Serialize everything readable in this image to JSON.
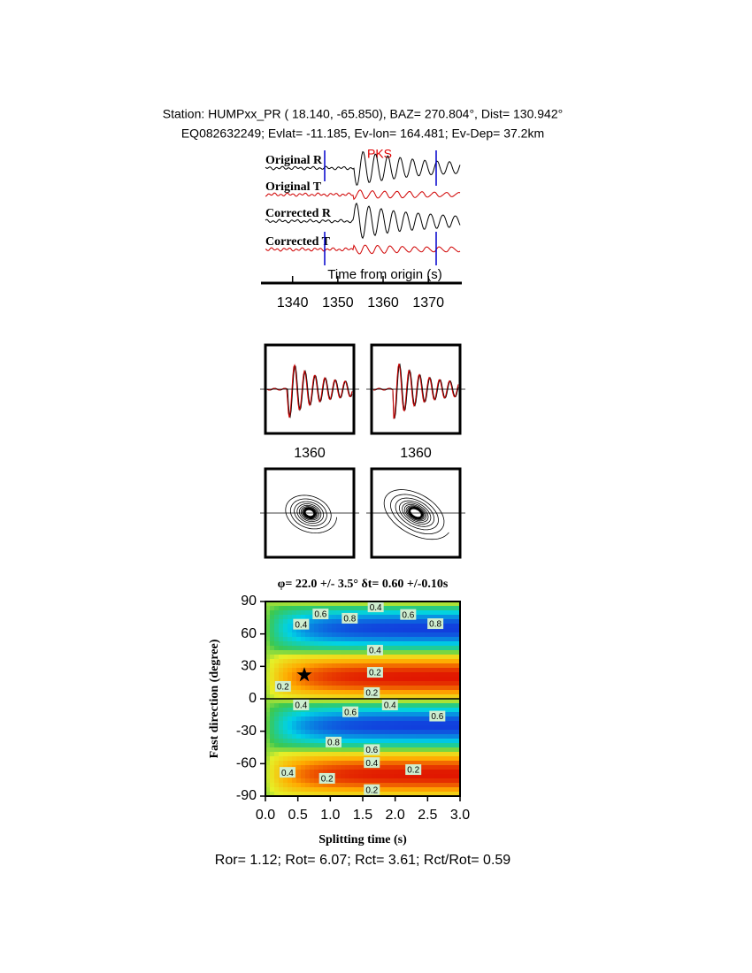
{
  "header": {
    "line1": "Station: HUMPxx_PR (  18.140,  -65.850), BAZ=  270.804°, Dist=  130.942°",
    "line2": "EQ082632249; Evlat= -11.185, Ev-lon= 164.481; Ev-Dep= 37.2km"
  },
  "traces": {
    "labels": [
      "Original R",
      "Original T",
      "Corrected R",
      "Corrected T"
    ],
    "phase": "PKS",
    "xlabel": "Time from origin (s)",
    "xlim": [
      1334,
      1377
    ],
    "xticks": [
      1340,
      1350,
      1360,
      1370
    ]
  },
  "panels": {
    "xtick": 1360
  },
  "chart_data": {
    "type": "contour",
    "title": "φ= 22.0 +/- 3.5° δt= 0.60 +/-0.10s",
    "x_label": "Splitting time (s)",
    "y_label": "Fast direction (degree)",
    "xlim": [
      0,
      3
    ],
    "ylim": [
      -90,
      90
    ],
    "xticks": [
      {
        "value": 0,
        "label": "0.0"
      },
      {
        "value": 0.5,
        "label": "0.5"
      },
      {
        "value": 1,
        "label": "1.0"
      },
      {
        "value": 1.5,
        "label": "1.5"
      },
      {
        "value": 2,
        "label": "2.0"
      },
      {
        "value": 2.5,
        "label": "2.5"
      },
      {
        "value": 3,
        "label": "3.0"
      }
    ],
    "yticks": [
      -90,
      -60,
      -30,
      0,
      30,
      60,
      90
    ],
    "best_fit": {
      "x": 0.6,
      "y": 22
    },
    "contour_labels": [
      {
        "x": 1.7,
        "y": 85,
        "label": 0.4
      },
      {
        "x": 0.85,
        "y": 78.5,
        "label": 0.6
      },
      {
        "x": 1.3,
        "y": 74.5,
        "label": 0.8
      },
      {
        "x": 2.2,
        "y": 78,
        "label": 0.6
      },
      {
        "x": 2.62,
        "y": 69.5,
        "label": 0.8
      },
      {
        "x": 0.55,
        "y": 69,
        "label": 0.4
      },
      {
        "x": 1.69,
        "y": 45,
        "label": 0.4
      },
      {
        "x": 1.69,
        "y": 24.5,
        "label": 0.2
      },
      {
        "x": 0.27,
        "y": 11.5,
        "label": 0.2
      },
      {
        "x": 1.64,
        "y": 5.7,
        "label": 0.2
      },
      {
        "x": 0.55,
        "y": -5.7,
        "label": 0.4
      },
      {
        "x": 1.92,
        "y": -5.7,
        "label": 0.4
      },
      {
        "x": 1.31,
        "y": -12,
        "label": 0.6
      },
      {
        "x": 2.65,
        "y": -16,
        "label": 0.6
      },
      {
        "x": 1.05,
        "y": -40,
        "label": 0.8
      },
      {
        "x": 1.64,
        "y": -47,
        "label": 0.6
      },
      {
        "x": 1.64,
        "y": -59,
        "label": 0.4
      },
      {
        "x": 0.34,
        "y": -68,
        "label": 0.4
      },
      {
        "x": 0.95,
        "y": -73.6,
        "label": 0.2
      },
      {
        "x": 2.28,
        "y": -65.5,
        "label": 0.2
      },
      {
        "x": 1.64,
        "y": -84,
        "label": 0.2
      }
    ]
  },
  "footer": "Ror= 1.12; Rot= 6.07; Rct= 3.61; Rct/Rot= 0.59"
}
